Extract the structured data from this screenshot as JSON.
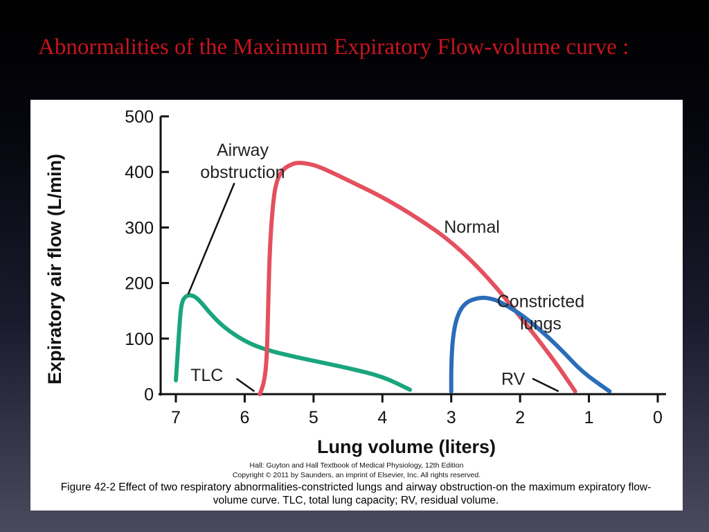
{
  "slide": {
    "title": "Abnormalities of the Maximum Expiratory Flow-volume curve :"
  },
  "figure": {
    "credit_line1": "Hall: Guyton and Hall Textbook of Medical Physiology, 12th Edition",
    "credit_line2": "Copyright © 2011 by Saunders, an imprint of Elsevier, Inc. All rights reserved.",
    "caption": "Figure 42-2 Effect of two respiratory abnormalities-constricted lungs and airway obstruction-on the maximum expiratory flow-volume curve. TLC, total lung capacity; RV, residual volume."
  },
  "chart_data": {
    "type": "line",
    "title": "",
    "xlabel": "Lung volume (liters)",
    "ylabel": "Expiratory air flow (L/min)",
    "xlim": [
      7,
      0
    ],
    "ylim": [
      0,
      500
    ],
    "x_reversed": true,
    "xticks": [
      "7",
      "6",
      "5",
      "4",
      "3",
      "2",
      "1",
      "0"
    ],
    "yticks": [
      "0",
      "100",
      "200",
      "300",
      "400",
      "500"
    ],
    "grid": false,
    "series": [
      {
        "name": "Airway obstruction",
        "color": "#1aa57e",
        "points": [
          [
            7.0,
            25
          ],
          [
            6.98,
            60
          ],
          [
            6.95,
            120
          ],
          [
            6.92,
            165
          ],
          [
            6.85,
            178
          ],
          [
            6.75,
            178
          ],
          [
            6.65,
            168
          ],
          [
            6.5,
            145
          ],
          [
            6.3,
            120
          ],
          [
            6.0,
            95
          ],
          [
            5.7,
            80
          ],
          [
            5.3,
            68
          ],
          [
            5.0,
            60
          ],
          [
            4.5,
            47
          ],
          [
            4.0,
            32
          ],
          [
            3.6,
            8
          ]
        ]
      },
      {
        "name": "Normal",
        "color": "#e4505e",
        "points": [
          [
            5.78,
            0
          ],
          [
            5.72,
            20
          ],
          [
            5.68,
            60
          ],
          [
            5.66,
            150
          ],
          [
            5.64,
            250
          ],
          [
            5.6,
            330
          ],
          [
            5.55,
            380
          ],
          [
            5.45,
            405
          ],
          [
            5.3,
            415
          ],
          [
            5.2,
            417
          ],
          [
            5.0,
            413
          ],
          [
            4.8,
            403
          ],
          [
            4.5,
            385
          ],
          [
            4.0,
            355
          ],
          [
            3.5,
            318
          ],
          [
            3.0,
            275
          ],
          [
            2.5,
            215
          ],
          [
            2.0,
            140
          ],
          [
            1.5,
            60
          ],
          [
            1.2,
            5
          ]
        ]
      },
      {
        "name": "Constricted lungs",
        "color": "#2b6db8",
        "points": [
          [
            3.0,
            5
          ],
          [
            3.0,
            50
          ],
          [
            2.98,
            100
          ],
          [
            2.92,
            140
          ],
          [
            2.8,
            165
          ],
          [
            2.6,
            174
          ],
          [
            2.45,
            173
          ],
          [
            2.3,
            167
          ],
          [
            2.0,
            145
          ],
          [
            1.7,
            115
          ],
          [
            1.4,
            80
          ],
          [
            1.1,
            40
          ],
          [
            0.7,
            5
          ]
        ]
      }
    ],
    "annotations": [
      {
        "text": "Airway",
        "x": 6.03,
        "y": 440
      },
      {
        "text": "obstruction",
        "x": 6.03,
        "y": 400
      },
      {
        "text": "Normal",
        "x": 2.7,
        "y": 302
      },
      {
        "text": "Constricted",
        "x": 1.7,
        "y": 168
      },
      {
        "text": "lungs",
        "x": 1.7,
        "y": 128
      },
      {
        "text": "TLC",
        "x": 6.55,
        "y": 35
      },
      {
        "text": "RV",
        "x": 2.1,
        "y": 28
      }
    ]
  }
}
